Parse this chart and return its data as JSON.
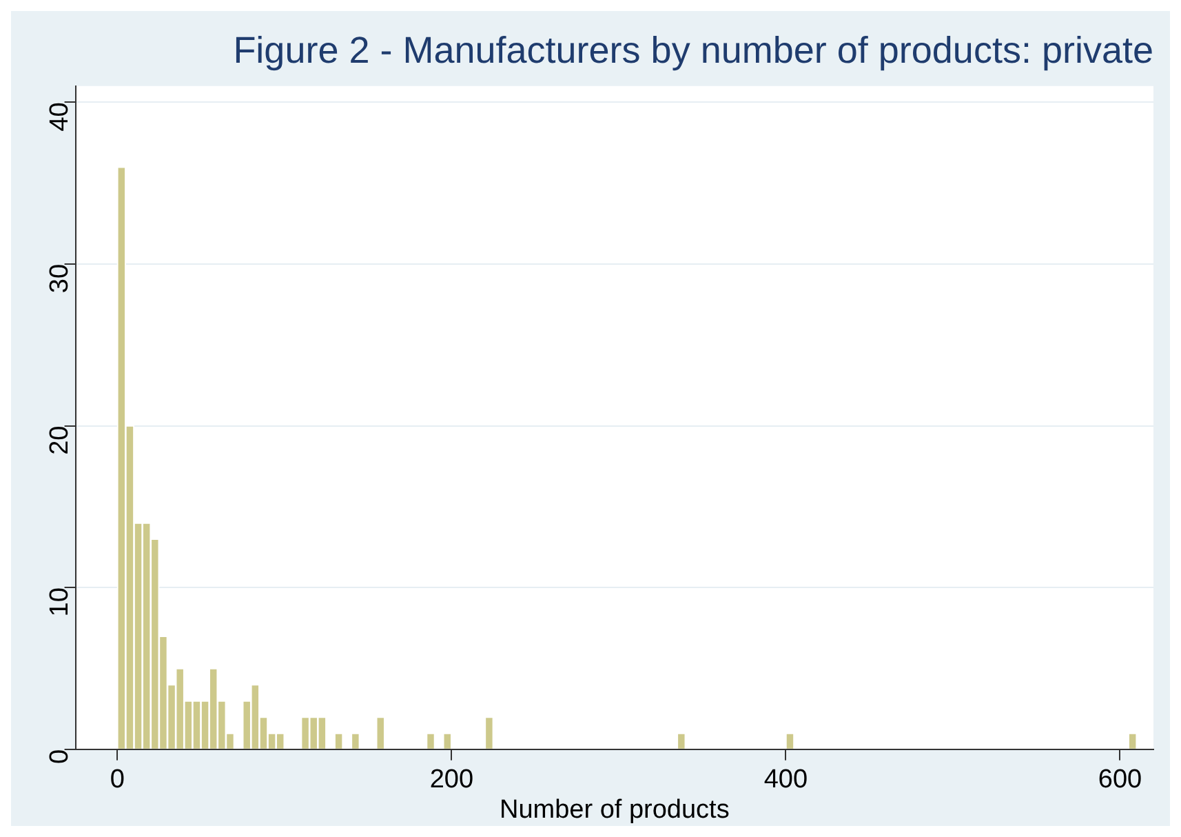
{
  "chart_data": {
    "type": "histogram",
    "title": "Figure 2 - Manufacturers by number of products: private",
    "xlabel": "Number of products",
    "bins": [
      0,
      5,
      10,
      15,
      20,
      25,
      30,
      35,
      40,
      45,
      50,
      55,
      60,
      65,
      70,
      75,
      80,
      85,
      90,
      95,
      100,
      105,
      110,
      115,
      120,
      125,
      130,
      135,
      140,
      145,
      150,
      155,
      160,
      165,
      170,
      175,
      180,
      185,
      190,
      195,
      200,
      205,
      210,
      215,
      220,
      225,
      230,
      235,
      240,
      245,
      250,
      255,
      260,
      265,
      270,
      275,
      280,
      285,
      290,
      295,
      300,
      305,
      310,
      315,
      320,
      325,
      330,
      335,
      340,
      345,
      350,
      355,
      360,
      365,
      370,
      375,
      380,
      385,
      390,
      395,
      400,
      405,
      410,
      415,
      420,
      425,
      430,
      435,
      440,
      445,
      450,
      455,
      460,
      465,
      470,
      475,
      480,
      485,
      490,
      495,
      500,
      505,
      510,
      515,
      520,
      525,
      530,
      535,
      540,
      545,
      550,
      555,
      560,
      565,
      570,
      575,
      580,
      585,
      590,
      595,
      600,
      605,
      610
    ],
    "values": [
      36,
      20,
      14,
      14,
      13,
      7,
      4,
      5,
      3,
      3,
      3,
      5,
      3,
      1,
      0,
      3,
      4,
      2,
      1,
      1,
      0,
      0,
      2,
      2,
      2,
      0,
      1,
      0,
      1,
      0,
      0,
      2,
      0,
      0,
      0,
      0,
      0,
      1,
      0,
      1,
      0,
      0,
      0,
      0,
      2,
      0,
      0,
      0,
      0,
      0,
      0,
      0,
      0,
      0,
      0,
      0,
      0,
      0,
      0,
      0,
      0,
      0,
      0,
      0,
      0,
      0,
      0,
      1,
      0,
      0,
      0,
      0,
      0,
      0,
      0,
      0,
      0,
      0,
      0,
      0,
      1,
      0,
      0,
      0,
      0,
      0,
      0,
      0,
      0,
      0,
      0,
      0,
      0,
      0,
      0,
      0,
      0,
      0,
      0,
      0,
      0,
      0,
      0,
      0,
      0,
      0,
      0,
      0,
      0,
      0,
      0,
      0,
      0,
      0,
      0,
      0,
      0,
      0,
      0,
      0,
      0,
      1
    ],
    "color": "#cdc98b",
    "xlim": [
      -25,
      620
    ],
    "xticks": [
      0,
      200,
      400,
      600
    ],
    "ylim": [
      0,
      41
    ],
    "yticks": [
      0,
      10,
      20,
      30,
      40
    ],
    "grid": "y",
    "legend": false
  }
}
